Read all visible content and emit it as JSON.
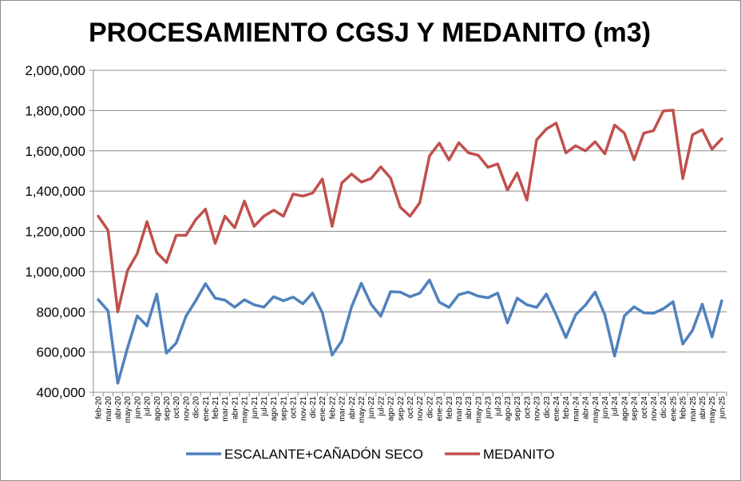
{
  "chart_data": {
    "type": "line",
    "title": "PROCESAMIENTO CGSJ Y MEDANITO (m3)",
    "xlabel": "",
    "ylabel": "",
    "ylim": [
      400000,
      2000000
    ],
    "yticks": [
      "400,000",
      "600,000",
      "800,000",
      "1,000,000",
      "1,200,000",
      "1,400,000",
      "1,600,000",
      "1,800,000",
      "2,000,000"
    ],
    "grid": true,
    "legend_position": "bottom",
    "categories": [
      "feb-20",
      "mar-20",
      "abr-20",
      "may-20",
      "jun-20",
      "jul-20",
      "ago-20",
      "sep-20",
      "oct-20",
      "nov-20",
      "dic-20",
      "ene-21",
      "feb-21",
      "mar-21",
      "abr-21",
      "may-21",
      "jun-21",
      "jul-21",
      "ago-21",
      "sep-21",
      "oct-21",
      "nov-21",
      "dic-21",
      "ene-22",
      "feb-22",
      "mar-22",
      "abr-22",
      "may-22",
      "jun-22",
      "jul-22",
      "ago-22",
      "sep-22",
      "oct-22",
      "nov-22",
      "dic-22",
      "ene-23",
      "feb-23",
      "mar-23",
      "abr-23",
      "may-23",
      "jun-23",
      "jul-23",
      "ago-23",
      "sep-23",
      "oct-23",
      "nov-23",
      "dic-23",
      "ene-24",
      "feb-24",
      "mar-24",
      "abr-24",
      "may-24",
      "jun-24",
      "jul-24",
      "ago-24",
      "sep-24",
      "oct-24",
      "nov-24",
      "dic-24",
      "ene-25",
      "feb-25",
      "mar-25",
      "abr-25",
      "may-25",
      "jun-25"
    ],
    "series": [
      {
        "name": "ESCALANTE+CAÑADÓN SECO",
        "color": "#4f81bd",
        "values": [
          860000,
          805000,
          445000,
          620000,
          780000,
          730000,
          888000,
          595000,
          645000,
          778000,
          855000,
          940000,
          868000,
          858000,
          823000,
          860000,
          835000,
          823000,
          875000,
          855000,
          873000,
          840000,
          893000,
          795000,
          585000,
          655000,
          825000,
          942000,
          838000,
          778000,
          900000,
          898000,
          875000,
          893000,
          958000,
          848000,
          822000,
          885000,
          898000,
          878000,
          870000,
          893000,
          745000,
          868000,
          835000,
          822000,
          888000,
          785000,
          672000,
          785000,
          833000,
          898000,
          785000,
          580000,
          780000,
          825000,
          795000,
          793000,
          815000,
          850000,
          640000,
          708000,
          838000,
          675000,
          855000
        ]
      },
      {
        "name": "MEDANITO",
        "color": "#c0504d",
        "values": [
          1275000,
          1205000,
          800000,
          1005000,
          1090000,
          1248000,
          1095000,
          1045000,
          1180000,
          1180000,
          1258000,
          1310000,
          1140000,
          1275000,
          1218000,
          1350000,
          1225000,
          1275000,
          1305000,
          1275000,
          1385000,
          1375000,
          1390000,
          1460000,
          1225000,
          1440000,
          1485000,
          1445000,
          1462000,
          1520000,
          1465000,
          1320000,
          1275000,
          1342000,
          1575000,
          1638000,
          1555000,
          1640000,
          1590000,
          1578000,
          1518000,
          1535000,
          1405000,
          1490000,
          1355000,
          1655000,
          1708000,
          1738000,
          1590000,
          1625000,
          1600000,
          1645000,
          1585000,
          1728000,
          1688000,
          1555000,
          1688000,
          1700000,
          1798000,
          1802000,
          1462000,
          1680000,
          1705000,
          1608000,
          1660000
        ]
      }
    ]
  }
}
